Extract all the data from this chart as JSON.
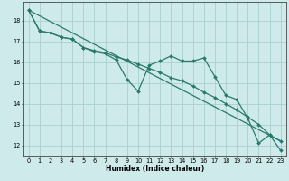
{
  "xlabel": "Humidex (Indice chaleur)",
  "xlim": [
    -0.5,
    23.5
  ],
  "ylim": [
    11.5,
    18.9
  ],
  "yticks": [
    12,
    13,
    14,
    15,
    16,
    17,
    18
  ],
  "xticks": [
    0,
    1,
    2,
    3,
    4,
    5,
    6,
    7,
    8,
    9,
    10,
    11,
    12,
    13,
    14,
    15,
    16,
    17,
    18,
    19,
    20,
    21,
    22,
    23
  ],
  "background_color": "#ceeaea",
  "grid_color": "#aacfcf",
  "line_color": "#2a7a6a",
  "line1_x": [
    0,
    1,
    2,
    3,
    4,
    5,
    6,
    7,
    8,
    9,
    10,
    11,
    12,
    13,
    14,
    15,
    16,
    17,
    18,
    19,
    20,
    21,
    22,
    23
  ],
  "line1_y": [
    18.5,
    17.5,
    17.4,
    17.2,
    17.1,
    16.7,
    16.5,
    16.4,
    16.1,
    15.15,
    14.6,
    15.85,
    16.05,
    16.3,
    16.05,
    16.05,
    16.2,
    15.3,
    14.4,
    14.2,
    13.3,
    12.1,
    12.5,
    11.75
  ],
  "line2_x": [
    0,
    1,
    2,
    3,
    4,
    5,
    6,
    7,
    8,
    9,
    10,
    11,
    12,
    13,
    14,
    15,
    16,
    17,
    18,
    19,
    20,
    21,
    22,
    23
  ],
  "line2_y": [
    18.5,
    17.5,
    17.4,
    17.2,
    17.1,
    16.7,
    16.55,
    16.45,
    16.25,
    16.1,
    15.9,
    15.7,
    15.5,
    15.25,
    15.1,
    14.85,
    14.55,
    14.3,
    14.0,
    13.7,
    13.35,
    13.0,
    12.5,
    12.2
  ],
  "line3_x": [
    0,
    23
  ],
  "line3_y": [
    18.5,
    12.2
  ],
  "marker": "D",
  "markersize": 2.0,
  "linewidth": 0.9,
  "axis_fontsize": 5.5,
  "tick_fontsize": 4.8
}
